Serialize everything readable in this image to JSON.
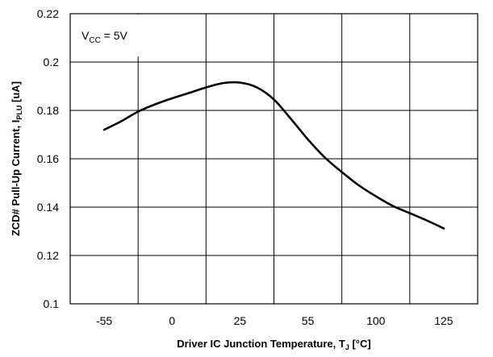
{
  "chart_data": {
    "type": "line",
    "title": "",
    "xlabel": {
      "main": "Driver IC Junction Temperature, T",
      "sub": "J",
      "unit": " [°C]"
    },
    "ylabel": {
      "main": "ZCD# Pull-Up Current, I",
      "sub": "PLU",
      "unit": " [uA]"
    },
    "annotation": {
      "main": "V",
      "sub": "CC",
      "rest": " = 5V"
    },
    "categories": [
      "-55",
      "0",
      "25",
      "55",
      "100",
      "125"
    ],
    "ylim": [
      0.1,
      0.22
    ],
    "yticks": [
      0.1,
      0.12,
      0.14,
      0.16,
      0.18,
      0.2,
      0.22
    ],
    "ytick_labels": [
      "0.1",
      "0.12",
      "0.14",
      "0.16",
      "0.18",
      "0.2",
      "0.22"
    ],
    "grid": true,
    "series": [
      {
        "x": [
          0,
          0.25,
          0.5,
          0.75,
          1,
          1.25,
          1.5,
          1.75,
          2,
          2.25,
          2.5,
          2.75,
          3,
          3.25,
          3.5,
          3.75,
          4,
          4.25,
          4.5,
          4.75,
          5
        ],
        "values": [
          0.172,
          0.1755,
          0.1795,
          0.1825,
          0.185,
          0.1872,
          0.1895,
          0.1913,
          0.1915,
          0.1895,
          0.1845,
          0.1765,
          0.168,
          0.1605,
          0.1545,
          0.149,
          0.1445,
          0.1405,
          0.1375,
          0.1345,
          0.1312
        ]
      }
    ],
    "colors": {
      "line": "#000000",
      "grid": "#000000",
      "background": "#ffffff"
    }
  }
}
